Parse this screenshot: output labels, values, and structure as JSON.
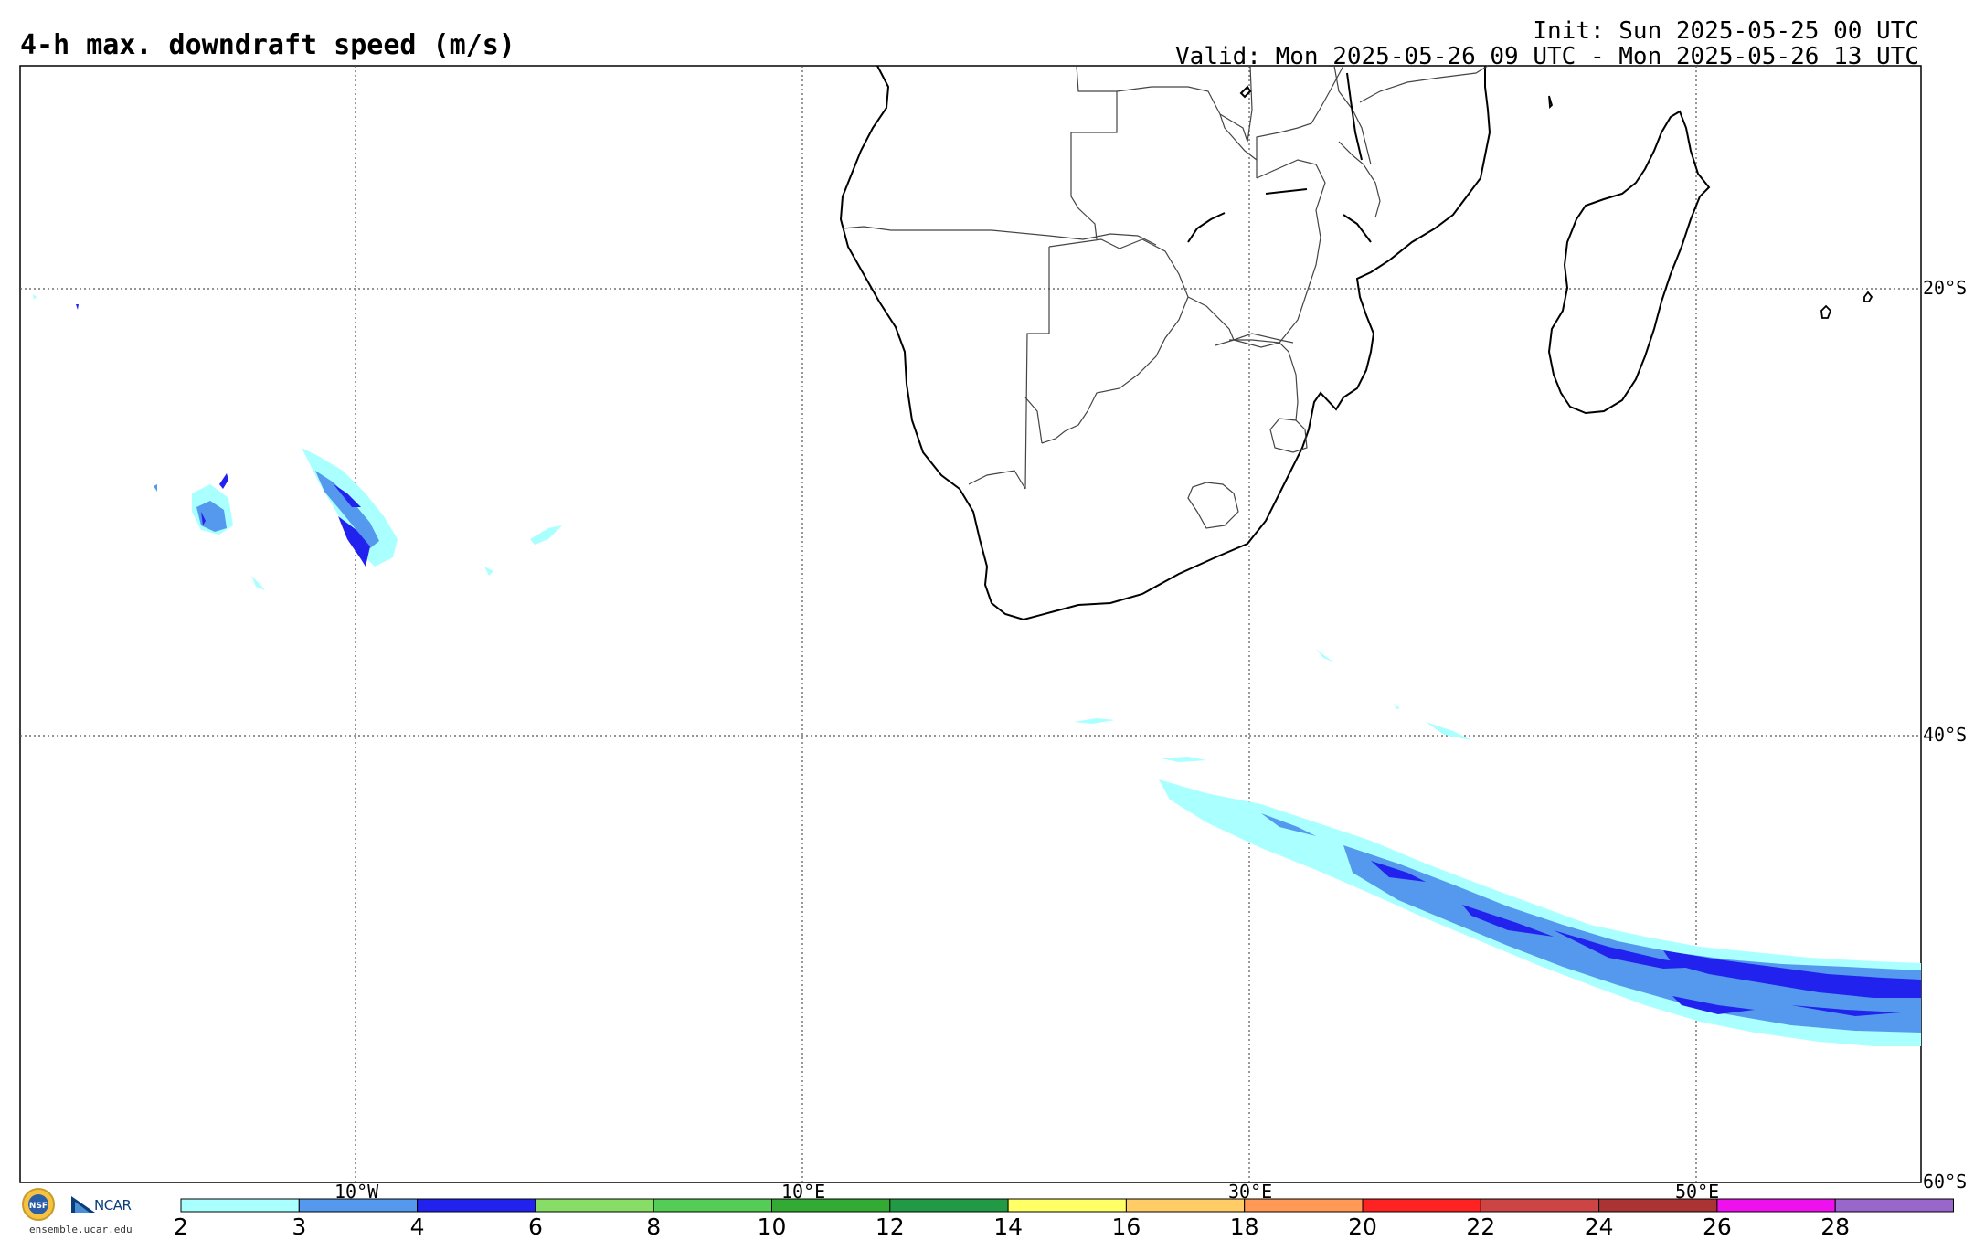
{
  "header": {
    "title": "4-h max. downdraft speed (m/s)",
    "init": "Init: Sun 2025-05-25 00 UTC",
    "valid": "Valid: Mon 2025-05-26 09 UTC - Mon 2025-05-26 13 UTC"
  },
  "map": {
    "lat_labels": [
      "20°S",
      "40°S",
      "60°S"
    ],
    "lon_labels": [
      "10°W",
      "10°E",
      "30°E",
      "50°E"
    ],
    "gridlines": "dotted"
  },
  "colorbar": {
    "ticks": [
      "2",
      "3",
      "4",
      "6",
      "8",
      "10",
      "12",
      "14",
      "16",
      "18",
      "20",
      "22",
      "24",
      "26",
      "28"
    ],
    "colors": [
      "#aaffff",
      "#5599ee",
      "#2222ee",
      "#88dd66",
      "#55cc55",
      "#33aa33",
      "#229944",
      "#ffff66",
      "#ffcc66",
      "#ff9955",
      "#ff2222",
      "#cc4444",
      "#aa3333",
      "#ee11ee",
      "#9966cc"
    ]
  },
  "footer": {
    "credit": "ensemble.ucar.edu",
    "logo_text": "NCAR",
    "nsf_text": "NSF"
  }
}
